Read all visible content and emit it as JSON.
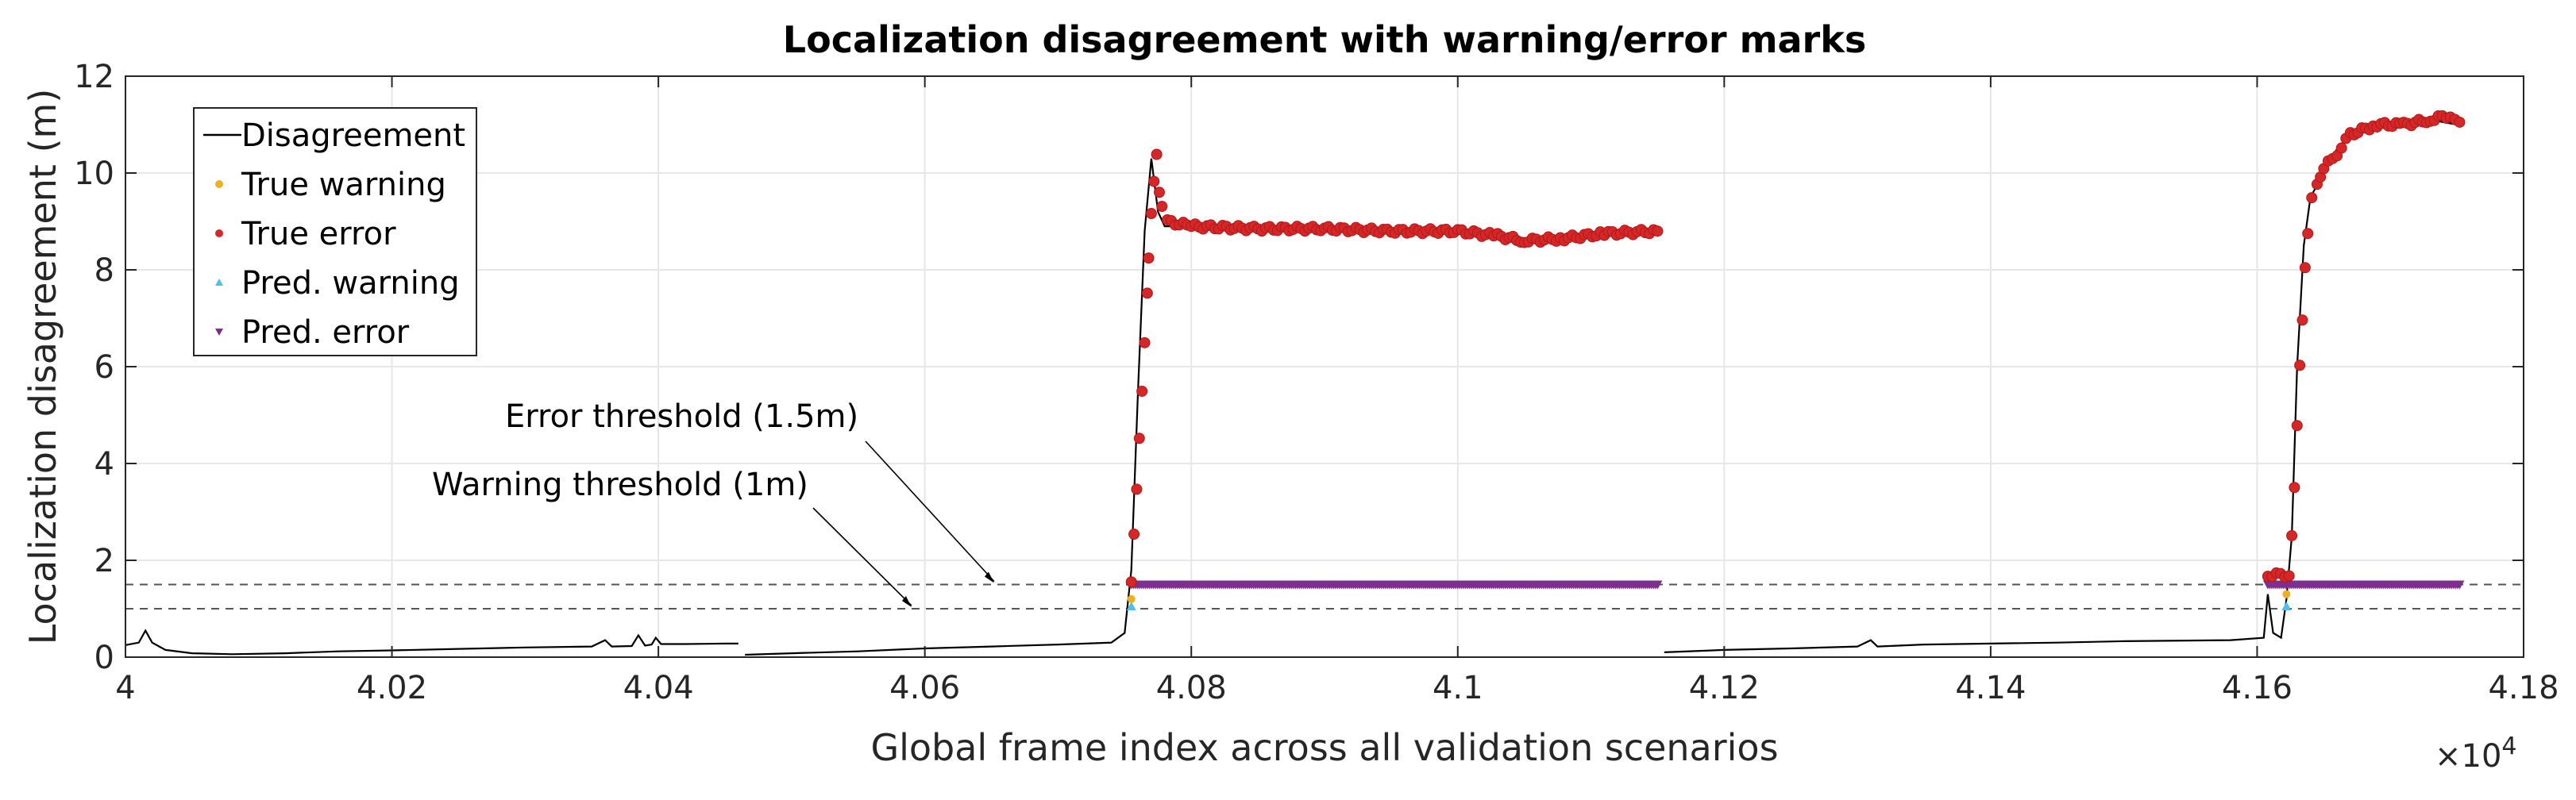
{
  "chart_data": {
    "type": "line",
    "title": "Localization disagreement with warning/error marks",
    "xlabel": "Global frame index across all validation scenarios",
    "ylabel": "Localization disagreement (m)",
    "x_multiplier_label": "×10",
    "x_multiplier_exponent": "4",
    "xlim": [
      40000,
      41800
    ],
    "ylim": [
      0,
      12
    ],
    "x_ticks": [
      40000,
      40200,
      40400,
      40600,
      40800,
      41000,
      41200,
      41400,
      41600,
      41800
    ],
    "x_tick_labels": [
      "4",
      "4.02",
      "4.04",
      "4.06",
      "4.08",
      "4.1",
      "4.12",
      "4.14",
      "4.16",
      "4.18"
    ],
    "y_ticks": [
      0,
      2,
      4,
      6,
      8,
      10,
      12
    ],
    "y_tick_labels": [
      "0",
      "2",
      "4",
      "6",
      "8",
      "10",
      "12"
    ],
    "grid": true,
    "legend_position": "top-left",
    "thresholds": [
      {
        "name": "Error threshold (1.5m)",
        "y": 1.5
      },
      {
        "name": "Warning threshold (1m)",
        "y": 1.0
      }
    ],
    "series": [
      {
        "name": "Disagreement",
        "color": "#000000",
        "segments": [
          [
            [
              40000,
              0.25
            ],
            [
              40010,
              0.3
            ],
            [
              40015,
              0.55
            ],
            [
              40020,
              0.3
            ],
            [
              40030,
              0.15
            ],
            [
              40050,
              0.08
            ],
            [
              40080,
              0.06
            ],
            [
              40120,
              0.08
            ],
            [
              40160,
              0.12
            ],
            [
              40200,
              0.14
            ],
            [
              40250,
              0.17
            ],
            [
              40300,
              0.2
            ],
            [
              40350,
              0.22
            ],
            [
              40360,
              0.35
            ],
            [
              40365,
              0.22
            ],
            [
              40380,
              0.23
            ],
            [
              40385,
              0.45
            ],
            [
              40390,
              0.24
            ],
            [
              40395,
              0.26
            ],
            [
              40398,
              0.4
            ],
            [
              40402,
              0.27
            ],
            [
              40420,
              0.27
            ],
            [
              40450,
              0.28
            ],
            [
              40460,
              0.28
            ]
          ],
          [
            [
              40465,
              0.05
            ],
            [
              40500,
              0.08
            ],
            [
              40550,
              0.12
            ],
            [
              40600,
              0.18
            ],
            [
              40650,
              0.22
            ],
            [
              40700,
              0.26
            ],
            [
              40740,
              0.3
            ],
            [
              40750,
              0.5
            ],
            [
              40755,
              1.8
            ],
            [
              40760,
              5.5
            ],
            [
              40765,
              8.8
            ],
            [
              40770,
              10.3
            ],
            [
              40775,
              9.2
            ],
            [
              40780,
              8.9
            ],
            [
              40800,
              8.9
            ],
            [
              40900,
              8.85
            ],
            [
              41000,
              8.8
            ],
            [
              41050,
              8.6
            ],
            [
              41100,
              8.7
            ],
            [
              41150,
              8.8
            ]
          ],
          [
            [
              41155,
              0.1
            ],
            [
              41200,
              0.15
            ],
            [
              41250,
              0.18
            ],
            [
              41300,
              0.22
            ],
            [
              41310,
              0.35
            ],
            [
              41315,
              0.22
            ],
            [
              41350,
              0.26
            ],
            [
              41400,
              0.28
            ],
            [
              41450,
              0.3
            ],
            [
              41500,
              0.33
            ],
            [
              41580,
              0.35
            ],
            [
              41605,
              0.4
            ],
            [
              41608,
              1.3
            ],
            [
              41612,
              0.5
            ],
            [
              41618,
              0.4
            ],
            [
              41622,
              1.2
            ],
            [
              41626,
              2.5
            ],
            [
              41630,
              6.0
            ],
            [
              41635,
              8.5
            ],
            [
              41640,
              9.5
            ],
            [
              41650,
              10.0
            ],
            [
              41660,
              10.5
            ],
            [
              41670,
              10.8
            ],
            [
              41700,
              11.0
            ],
            [
              41730,
              11.1
            ],
            [
              41750,
              11.0
            ]
          ]
        ]
      },
      {
        "name": "True warning",
        "color": "#EDB120",
        "marker": "dot",
        "points": [
          [
            40755,
            1.2
          ],
          [
            41622,
            1.3
          ]
        ]
      },
      {
        "name": "True error",
        "color": "#D62728",
        "marker": "circle",
        "segments": [
          [
            [
              40755,
              1.6
            ],
            [
              40757,
              2.5
            ],
            [
              40759,
              3.5
            ],
            [
              40761,
              4.5
            ],
            [
              40763,
              5.5
            ],
            [
              40765,
              6.5
            ],
            [
              40767,
              7.5
            ],
            [
              40768,
              8.2
            ],
            [
              40770,
              9.2
            ],
            [
              40772,
              9.8
            ],
            [
              40774,
              10.4
            ],
            [
              40776,
              9.6
            ],
            [
              40778,
              9.3
            ],
            [
              40782,
              9.0
            ],
            [
              40800,
              8.9
            ],
            [
              40850,
              8.85
            ],
            [
              40900,
              8.85
            ],
            [
              40950,
              8.8
            ],
            [
              41000,
              8.8
            ],
            [
              41030,
              8.7
            ],
            [
              41050,
              8.6
            ],
            [
              41080,
              8.65
            ],
            [
              41110,
              8.75
            ],
            [
              41150,
              8.8
            ]
          ],
          [
            [
              41608,
              1.7
            ],
            [
              41624,
              1.7
            ],
            [
              41626,
              2.5
            ],
            [
              41628,
              3.5
            ],
            [
              41630,
              4.8
            ],
            [
              41632,
              6.0
            ],
            [
              41634,
              7.0
            ],
            [
              41636,
              8.0
            ],
            [
              41638,
              8.8
            ],
            [
              41641,
              9.5
            ],
            [
              41645,
              9.8
            ],
            [
              41650,
              10.1
            ],
            [
              41660,
              10.4
            ],
            [
              41670,
              10.8
            ],
            [
              41690,
              11.0
            ],
            [
              41710,
              11.0
            ],
            [
              41730,
              11.1
            ],
            [
              41745,
              11.2
            ],
            [
              41752,
              11.05
            ]
          ]
        ]
      },
      {
        "name": "Pred. warning",
        "color": "#4DBEEE",
        "marker": "triangle-up",
        "points": [
          [
            40755,
            1.05
          ],
          [
            41622,
            1.05
          ]
        ]
      },
      {
        "name": "Pred. error",
        "color": "#7E2F8E",
        "marker": "triangle-down",
        "ranges": [
          [
            40755,
            41150,
            1.5
          ],
          [
            41608,
            41752,
            1.5
          ]
        ]
      }
    ]
  }
}
